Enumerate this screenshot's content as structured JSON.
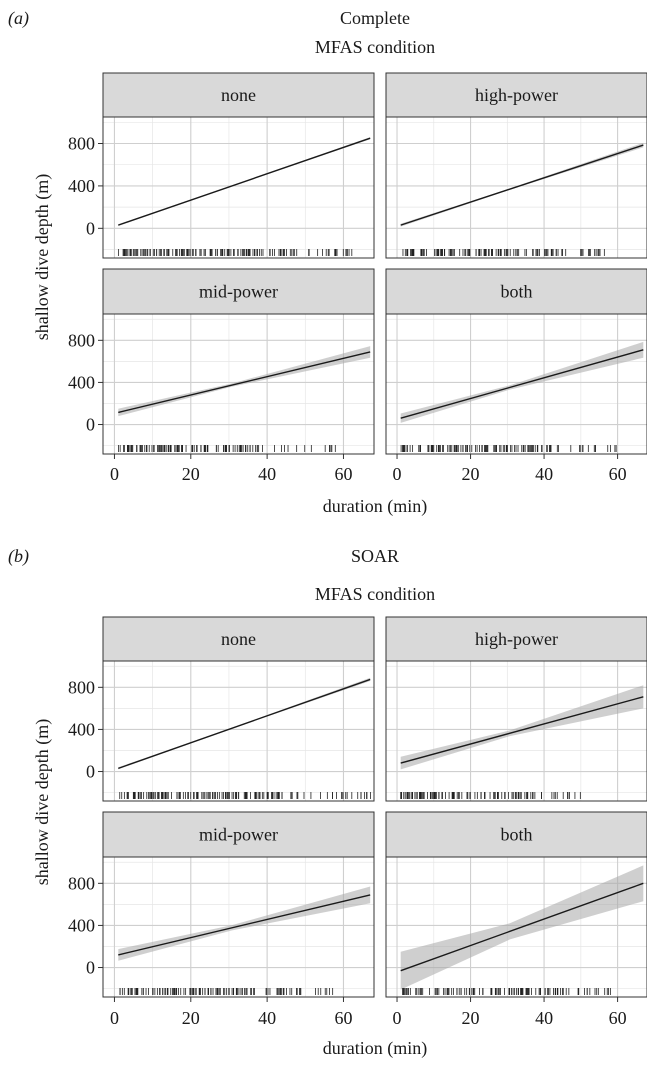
{
  "chart_data": [
    {
      "type": "line",
      "panel_label": "(a)",
      "title": "Complete",
      "facet_title": "MFAS condition",
      "xlabel": "duration (min)",
      "ylabel": "shallow dive depth (m)",
      "xlim": [
        -3,
        68
      ],
      "ylim": [
        -280,
        1050
      ],
      "x_ticks": [
        0,
        20,
        40,
        60
      ],
      "y_ticks": [
        0,
        400,
        800
      ],
      "grid": true,
      "facets": [
        {
          "label": "none",
          "fit": {
            "x": [
              1,
              67
            ],
            "y": [
              30,
              850
            ]
          },
          "ci_width": [
            8,
            10
          ],
          "rug": {
            "seed": 11,
            "dense_end": 48,
            "max": 68,
            "count": 150
          }
        },
        {
          "label": "high-power",
          "fit": {
            "x": [
              1,
              67
            ],
            "y": [
              30,
              785
            ]
          },
          "ci_width": [
            14,
            22
          ],
          "rug": {
            "seed": 23,
            "dense_end": 45,
            "max": 57,
            "count": 130
          }
        },
        {
          "label": "mid-power",
          "fit": {
            "x": [
              1,
              67
            ],
            "y": [
              115,
              690
            ]
          },
          "ci_width": [
            35,
            55
          ],
          "rug": {
            "seed": 37,
            "dense_end": 38,
            "max": 58,
            "count": 120
          }
        },
        {
          "label": "both",
          "fit": {
            "x": [
              1,
              67
            ],
            "y": [
              60,
              710
            ]
          },
          "ci_width": [
            45,
            75
          ],
          "rug": {
            "seed": 41,
            "dense_end": 42,
            "max": 60,
            "count": 125
          }
        }
      ]
    },
    {
      "type": "line",
      "panel_label": "(b)",
      "title": "SOAR",
      "facet_title": "MFAS condition",
      "xlabel": "duration (min)",
      "ylabel": "shallow dive depth (m)",
      "xlim": [
        -3,
        68
      ],
      "ylim": [
        -280,
        1050
      ],
      "x_ticks": [
        0,
        20,
        40,
        60
      ],
      "y_ticks": [
        0,
        400,
        800
      ],
      "grid": true,
      "facets": [
        {
          "label": "none",
          "fit": {
            "x": [
              1,
              67
            ],
            "y": [
              30,
              875
            ]
          },
          "ci_width": [
            10,
            15
          ],
          "rug": {
            "seed": 53,
            "dense_end": 50,
            "max": 68,
            "count": 160
          }
        },
        {
          "label": "high-power",
          "fit": {
            "x": [
              1,
              67
            ],
            "y": [
              80,
              710
            ]
          },
          "ci_width": [
            60,
            110
          ],
          "rug": {
            "seed": 67,
            "dense_end": 38,
            "max": 50,
            "count": 110
          }
        },
        {
          "label": "mid-power",
          "fit": {
            "x": [
              1,
              67
            ],
            "y": [
              120,
              690
            ]
          },
          "ci_width": [
            55,
            80
          ],
          "rug": {
            "seed": 71,
            "dense_end": 45,
            "max": 58,
            "count": 130
          }
        },
        {
          "label": "both",
          "fit": {
            "x": [
              1,
              67
            ],
            "y": [
              -30,
              800
            ]
          },
          "ci_width": [
            180,
            170
          ],
          "rug": {
            "seed": 83,
            "dense_end": 48,
            "max": 60,
            "count": 120
          }
        }
      ]
    }
  ]
}
